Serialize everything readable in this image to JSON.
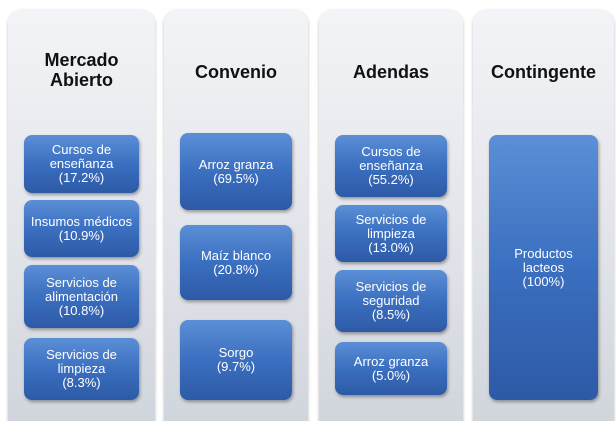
{
  "columns": [
    {
      "title": [
        "Mercado",
        "Abierto"
      ],
      "items": [
        {
          "lines": [
            "Cursos de",
            "enseñanza",
            "(17.2%)"
          ]
        },
        {
          "lines": [
            "Insumos médicos",
            "(10.9%)"
          ]
        },
        {
          "lines": [
            "Servicios de",
            "alimentación",
            "(10.8%)"
          ]
        },
        {
          "lines": [
            "Servicios de",
            "limpieza",
            "(8.3%)"
          ]
        }
      ]
    },
    {
      "title": [
        "Convenio"
      ],
      "items": [
        {
          "lines": [
            "Arroz granza",
            "(69.5%)"
          ]
        },
        {
          "lines": [
            "Maíz blanco",
            "(20.8%)"
          ]
        },
        {
          "lines": [
            "Sorgo",
            "(9.7%)"
          ]
        }
      ]
    },
    {
      "title": [
        "Adendas"
      ],
      "items": [
        {
          "lines": [
            "Cursos de",
            "enseñanza",
            "(55.2%)"
          ]
        },
        {
          "lines": [
            "Servicios de",
            "limpieza",
            "(13.0%)"
          ]
        },
        {
          "lines": [
            "Servicios de",
            "seguridad",
            "(8.5%)"
          ]
        },
        {
          "lines": [
            "Arroz granza",
            "(5.0%)"
          ]
        }
      ]
    },
    {
      "title": [
        "Contingente"
      ],
      "items": [
        {
          "lines": [
            "Productos",
            "lacteos",
            "(100%)"
          ]
        }
      ]
    }
  ]
}
